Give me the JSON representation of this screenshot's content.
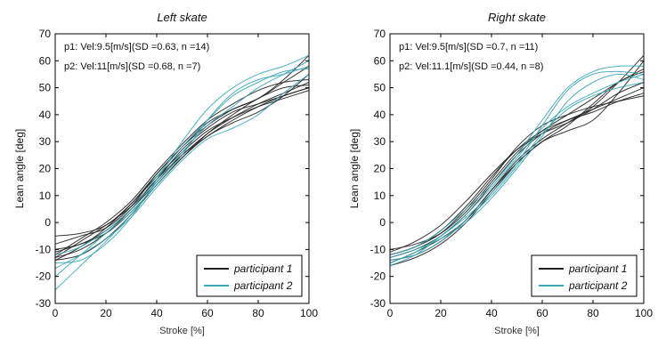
{
  "chart_data": [
    {
      "type": "line",
      "title": "Left skate",
      "xlabel": "Stroke [%]",
      "ylabel": "Lean angle [deg]",
      "xlim": [
        0,
        100
      ],
      "ylim": [
        -30,
        70
      ],
      "xticks": [
        "0",
        "20",
        "40",
        "60",
        "80",
        "100"
      ],
      "yticks": [
        "-30",
        "-20",
        "-10",
        "0",
        "10",
        "20",
        "30",
        "40",
        "50",
        "60",
        "70"
      ],
      "grid": false,
      "legend_position": "bottom-right",
      "legend": [
        "participant 1",
        "participant 2"
      ],
      "annotations": [
        "p1: Vel:9.5[m/s](SD =0.63, n =14)",
        "p2: Vel:11[m/s](SD =0.68, n =7)"
      ],
      "x": [
        0,
        10,
        20,
        30,
        40,
        50,
        60,
        70,
        80,
        90,
        100
      ],
      "series": [
        {
          "name": "participant 1",
          "color": "#202020",
          "values": [
            -13,
            -10,
            -4,
            5,
            16,
            25,
            33,
            39,
            44,
            48,
            52
          ]
        },
        {
          "name": "participant 1",
          "color": "#202020",
          "values": [
            -13,
            -7,
            -1,
            6,
            16,
            27,
            35,
            41,
            44,
            47,
            50
          ]
        },
        {
          "name": "participant 1",
          "color": "#202020",
          "values": [
            -8,
            -5,
            -2,
            6,
            18,
            28,
            36,
            42,
            46,
            52,
            58
          ]
        },
        {
          "name": "participant 1",
          "color": "#202020",
          "values": [
            -14,
            -12,
            -6,
            3,
            14,
            24,
            32,
            37,
            41,
            47,
            55
          ]
        },
        {
          "name": "participant 1",
          "color": "#202020",
          "values": [
            -12,
            -6,
            0,
            8,
            19,
            29,
            38,
            44,
            49,
            52,
            53
          ]
        },
        {
          "name": "participant 1",
          "color": "#202020",
          "values": [
            -10,
            -8,
            -3,
            5,
            15,
            25,
            32,
            38,
            43,
            47,
            50
          ]
        },
        {
          "name": "participant 1",
          "color": "#202020",
          "values": [
            -5,
            -4,
            -1,
            7,
            17,
            26,
            34,
            39,
            43,
            46,
            49
          ]
        },
        {
          "name": "participant 1",
          "color": "#202020",
          "values": [
            -14,
            -9,
            -2,
            7,
            18,
            28,
            37,
            42,
            46,
            53,
            62
          ]
        },
        {
          "name": "participant 1",
          "color": "#202020",
          "values": [
            -11,
            -8,
            -4,
            4,
            14,
            24,
            33,
            40,
            46,
            50,
            51
          ]
        },
        {
          "name": "participant 2",
          "color": "#3aa9b5",
          "values": [
            -25,
            -16,
            -7,
            3,
            15,
            26,
            36,
            43,
            50,
            55,
            60
          ]
        },
        {
          "name": "participant 2",
          "color": "#3aa9b5",
          "values": [
            -20,
            -12,
            -4,
            4,
            14,
            25,
            38,
            48,
            53,
            55,
            58
          ]
        },
        {
          "name": "participant 2",
          "color": "#3aa9b5",
          "values": [
            -17,
            -12,
            -6,
            2,
            13,
            23,
            31,
            35,
            40,
            48,
            55
          ]
        },
        {
          "name": "participant 2",
          "color": "#3aa9b5",
          "values": [
            -15,
            -14,
            -8,
            2,
            16,
            30,
            42,
            50,
            55,
            58,
            62
          ]
        },
        {
          "name": "participant 2",
          "color": "#3aa9b5",
          "values": [
            -12,
            -9,
            -3,
            5,
            17,
            28,
            38,
            47,
            52,
            56,
            57
          ]
        }
      ]
    },
    {
      "type": "line",
      "title": "Right skate",
      "xlabel": "Stroke [%]",
      "ylabel": "Lean angle [deg]",
      "xlim": [
        0,
        100
      ],
      "ylim": [
        -30,
        70
      ],
      "xticks": [
        "0",
        "20",
        "40",
        "60",
        "80",
        "100"
      ],
      "yticks": [
        "-30",
        "-20",
        "-10",
        "0",
        "10",
        "20",
        "30",
        "40",
        "50",
        "60",
        "70"
      ],
      "grid": false,
      "legend_position": "bottom-right",
      "legend": [
        "participant 1",
        "participant 2"
      ],
      "annotations": [
        "p1: Vel:9.5[m/s](SD =0.7, n =11)",
        "p2: Vel:11.1[m/s](SD =0.44, n =8)"
      ],
      "x": [
        0,
        10,
        20,
        30,
        40,
        50,
        60,
        70,
        80,
        90,
        100
      ],
      "series": [
        {
          "name": "participant 1",
          "color": "#202020",
          "values": [
            -13,
            -10,
            -5,
            3,
            14,
            25,
            33,
            38,
            42,
            46,
            50
          ]
        },
        {
          "name": "participant 1",
          "color": "#202020",
          "values": [
            -15,
            -11,
            -6,
            1,
            12,
            23,
            31,
            37,
            43,
            52,
            62
          ]
        },
        {
          "name": "participant 1",
          "color": "#202020",
          "values": [
            -12,
            -9,
            -3,
            6,
            17,
            27,
            34,
            38,
            41,
            45,
            48
          ]
        },
        {
          "name": "participant 1",
          "color": "#202020",
          "values": [
            -10,
            -8,
            -4,
            4,
            15,
            26,
            34,
            40,
            46,
            52,
            57
          ]
        },
        {
          "name": "participant 1",
          "color": "#202020",
          "values": [
            -16,
            -13,
            -8,
            0,
            11,
            22,
            30,
            34,
            38,
            48,
            60
          ]
        },
        {
          "name": "participant 1",
          "color": "#202020",
          "values": [
            -11,
            -7,
            -1,
            8,
            18,
            27,
            33,
            37,
            42,
            48,
            52
          ]
        },
        {
          "name": "participant 1",
          "color": "#202020",
          "values": [
            -14,
            -12,
            -7,
            1,
            12,
            22,
            30,
            36,
            44,
            52,
            56
          ]
        },
        {
          "name": "participant 1",
          "color": "#202020",
          "values": [
            -12,
            -9,
            -4,
            5,
            16,
            28,
            36,
            40,
            43,
            45,
            47
          ]
        },
        {
          "name": "participant 2",
          "color": "#3aa9b5",
          "values": [
            -15,
            -11,
            -5,
            2,
            11,
            22,
            36,
            49,
            55,
            56,
            55
          ]
        },
        {
          "name": "participant 2",
          "color": "#3aa9b5",
          "values": [
            -12,
            -9,
            -3,
            5,
            14,
            25,
            38,
            50,
            56,
            58,
            58
          ]
        },
        {
          "name": "participant 2",
          "color": "#3aa9b5",
          "values": [
            -13,
            -10,
            -6,
            0,
            9,
            20,
            32,
            45,
            52,
            55,
            53
          ]
        },
        {
          "name": "participant 2",
          "color": "#3aa9b5",
          "values": [
            -14,
            -12,
            -7,
            1,
            10,
            21,
            33,
            42,
            47,
            50,
            52
          ]
        },
        {
          "name": "participant 2",
          "color": "#3aa9b5",
          "values": [
            -16,
            -12,
            -5,
            3,
            13,
            24,
            35,
            43,
            48,
            52,
            55
          ]
        }
      ]
    }
  ]
}
